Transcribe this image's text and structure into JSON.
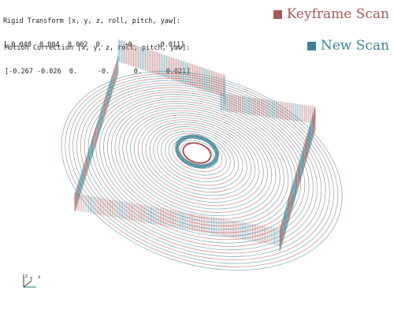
{
  "rigid_transform": {
    "label": "Rigid Transform [x, y, z, roll, pitch, yaw]:",
    "values": "[ 0.048  0.004  0.002  0.     -0.     -0.011]"
  },
  "motion_correction": {
    "label": "Motion Correction [x, y, z, roll, pitch, yaw]:",
    "values": "[-0.267 -0.026  0.     -0.      0.      0.021]"
  },
  "legend": {
    "keyframe": {
      "label": "Keyframe Scan",
      "color": "#a85856"
    },
    "new": {
      "label": "New Scan",
      "color": "#3c8294"
    }
  },
  "axes_gizmo": {
    "labels": [
      "z",
      "y",
      "x"
    ]
  }
}
